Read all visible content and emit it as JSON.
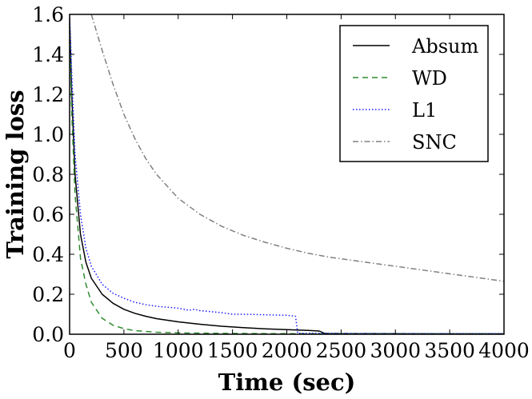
{
  "chart_data": {
    "type": "line",
    "title": "",
    "xlabel": "Time (sec)",
    "ylabel": "Training loss",
    "xlim": [
      0,
      4000
    ],
    "ylim": [
      0,
      1.6
    ],
    "grid": false,
    "legend_position": "top-right",
    "x_ticks": [
      0,
      500,
      1000,
      1500,
      2000,
      2500,
      3000,
      3500,
      4000
    ],
    "x_tick_labels": [
      "0",
      "500",
      "1000",
      "1500",
      "2000",
      "2500",
      "3000",
      "3500",
      "4000"
    ],
    "y_ticks": [
      0.0,
      0.2,
      0.4,
      0.6,
      0.8,
      1.0,
      1.2,
      1.4,
      1.6
    ],
    "y_tick_labels": [
      "0.0",
      "0.2",
      "0.4",
      "0.6",
      "0.8",
      "1.0",
      "1.2",
      "1.4",
      "1.6"
    ],
    "series": [
      {
        "name": "Absum",
        "color": "#000000",
        "dash": "solid",
        "x": [
          0,
          20,
          50,
          100,
          150,
          200,
          300,
          400,
          500,
          600,
          700,
          800,
          1000,
          1200,
          1400,
          1600,
          1800,
          2000,
          2200,
          2300,
          2350,
          2500,
          3000,
          3500,
          4000
        ],
        "y": [
          1.58,
          1.2,
          0.8,
          0.5,
          0.36,
          0.28,
          0.2,
          0.155,
          0.125,
          0.105,
          0.09,
          0.078,
          0.062,
          0.05,
          0.04,
          0.033,
          0.027,
          0.023,
          0.019,
          0.016,
          0.004,
          0.003,
          0.003,
          0.002,
          0.002
        ]
      },
      {
        "name": "WD",
        "color": "#2e8b2e",
        "dash": "dashed",
        "x": [
          0,
          20,
          50,
          100,
          150,
          200,
          300,
          400,
          500,
          600,
          800,
          1000,
          1500,
          2000,
          3000,
          4000
        ],
        "y": [
          1.55,
          1.1,
          0.7,
          0.38,
          0.25,
          0.16,
          0.08,
          0.045,
          0.028,
          0.018,
          0.01,
          0.007,
          0.004,
          0.003,
          0.002,
          0.002
        ]
      },
      {
        "name": "L1",
        "color": "#1a1aff",
        "dash": "dotted",
        "x": [
          0,
          20,
          50,
          100,
          150,
          200,
          300,
          400,
          500,
          600,
          700,
          800,
          1000,
          1100,
          1150,
          1200,
          1400,
          1500,
          1600,
          2000,
          2080,
          2100,
          2500,
          3000,
          3500,
          4000
        ],
        "y": [
          1.6,
          1.3,
          0.9,
          0.6,
          0.43,
          0.34,
          0.25,
          0.205,
          0.18,
          0.16,
          0.148,
          0.14,
          0.13,
          0.12,
          0.125,
          0.118,
          0.108,
          0.1,
          0.1,
          0.095,
          0.09,
          0.005,
          0.004,
          0.003,
          0.003,
          0.003
        ]
      },
      {
        "name": "SNC",
        "color": "#808080",
        "dash": "dashdot",
        "x": [
          200,
          300,
          400,
          500,
          600,
          700,
          800,
          1000,
          1200,
          1400,
          1600,
          1800,
          2000,
          2200,
          2400,
          2600,
          2800,
          3000,
          3200,
          3400,
          3600,
          3800,
          4000
        ],
        "y": [
          1.6,
          1.42,
          1.25,
          1.1,
          0.98,
          0.88,
          0.8,
          0.68,
          0.6,
          0.54,
          0.495,
          0.46,
          0.43,
          0.405,
          0.385,
          0.37,
          0.355,
          0.34,
          0.325,
          0.31,
          0.295,
          0.28,
          0.265
        ]
      }
    ]
  }
}
